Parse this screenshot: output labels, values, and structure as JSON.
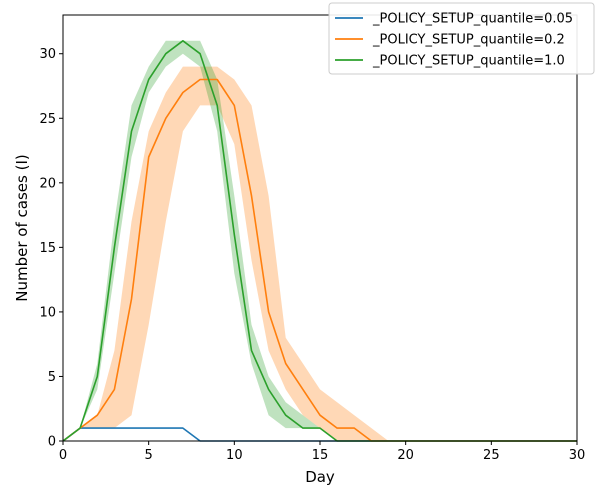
{
  "chart_data": {
    "type": "line",
    "title": "",
    "xlabel": "Day",
    "ylabel": "Number of cases (I)",
    "xlim": [
      0,
      30
    ],
    "ylim": [
      0,
      33
    ],
    "xticks": [
      0,
      5,
      10,
      15,
      20,
      25,
      30
    ],
    "yticks": [
      0,
      5,
      10,
      15,
      20,
      25,
      30
    ],
    "grid": false,
    "legend_position": "top-right",
    "series": [
      {
        "name": "_POLICY_SETUP_quantile=0.05",
        "color": "#1f77b4",
        "x": [
          0,
          1,
          2,
          3,
          4,
          5,
          6,
          7,
          8,
          9,
          10,
          11,
          12,
          13,
          14,
          15,
          16,
          17,
          18,
          19,
          20,
          21,
          22,
          23,
          24,
          25,
          26,
          27,
          28,
          29,
          30
        ],
        "values": [
          0,
          1,
          1,
          1,
          1,
          1,
          1,
          1,
          0,
          0,
          0,
          0,
          0,
          0,
          0,
          0,
          0,
          0,
          0,
          0,
          0,
          0,
          0,
          0,
          0,
          0,
          0,
          0,
          0,
          0,
          0
        ],
        "lower": [
          0,
          1,
          1,
          1,
          1,
          1,
          1,
          1,
          0,
          0,
          0,
          0,
          0,
          0,
          0,
          0,
          0,
          0,
          0,
          0,
          0,
          0,
          0,
          0,
          0,
          0,
          0,
          0,
          0,
          0,
          0
        ],
        "upper": [
          0,
          1,
          1,
          1,
          1,
          1,
          1,
          1,
          0,
          0,
          0,
          0,
          0,
          0,
          0,
          0,
          0,
          0,
          0,
          0,
          0,
          0,
          0,
          0,
          0,
          0,
          0,
          0,
          0,
          0,
          0
        ]
      },
      {
        "name": "_POLICY_SETUP_quantile=0.2",
        "color": "#ff7f0e",
        "x": [
          0,
          1,
          2,
          3,
          4,
          5,
          6,
          7,
          8,
          9,
          10,
          11,
          12,
          13,
          14,
          15,
          16,
          17,
          18,
          19,
          20,
          21,
          22,
          23,
          24,
          25,
          26,
          27,
          28,
          29,
          30
        ],
        "values": [
          0,
          1,
          2,
          4,
          11,
          22,
          25,
          27,
          28,
          28,
          26,
          19,
          10,
          6,
          4,
          2,
          1,
          1,
          0,
          0,
          0,
          0,
          0,
          0,
          0,
          0,
          0,
          0,
          0,
          0,
          0
        ],
        "lower": [
          0,
          1,
          1,
          1,
          2,
          9,
          17,
          24,
          26,
          26,
          23,
          14,
          7,
          4,
          2,
          1,
          0,
          0,
          0,
          0,
          0,
          0,
          0,
          0,
          0,
          0,
          0,
          0,
          0,
          0,
          0
        ],
        "upper": [
          0,
          1,
          2,
          7,
          17,
          24,
          27,
          29,
          29,
          29,
          28,
          26,
          19,
          8,
          6,
          4,
          3,
          2,
          1,
          0,
          0,
          0,
          0,
          0,
          0,
          0,
          0,
          0,
          0,
          0,
          0
        ]
      },
      {
        "name": "_POLICY_SETUP_quantile=1.0",
        "color": "#2ca02c",
        "x": [
          0,
          1,
          2,
          3,
          4,
          5,
          6,
          7,
          8,
          9,
          10,
          11,
          12,
          13,
          14,
          15,
          16,
          17,
          18,
          19,
          20,
          21,
          22,
          23,
          24,
          25,
          26,
          27,
          28,
          29,
          30
        ],
        "values": [
          0,
          1,
          5,
          15,
          24,
          28,
          30,
          31,
          30,
          26,
          16,
          7,
          4,
          2,
          1,
          1,
          0,
          0,
          0,
          0,
          0,
          0,
          0,
          0,
          0,
          0,
          0,
          0,
          0,
          0,
          0
        ],
        "lower": [
          0,
          1,
          4,
          13,
          22,
          27,
          29,
          30,
          29,
          24,
          13,
          6,
          2,
          1,
          1,
          1,
          0,
          0,
          0,
          0,
          0,
          0,
          0,
          0,
          0,
          0,
          0,
          0,
          0,
          0,
          0
        ],
        "upper": [
          0,
          1,
          6,
          17,
          26,
          29,
          31,
          31,
          31,
          28,
          19,
          9,
          5,
          3,
          2,
          1,
          0,
          0,
          0,
          0,
          0,
          0,
          0,
          0,
          0,
          0,
          0,
          0,
          0,
          0,
          0
        ]
      }
    ]
  }
}
